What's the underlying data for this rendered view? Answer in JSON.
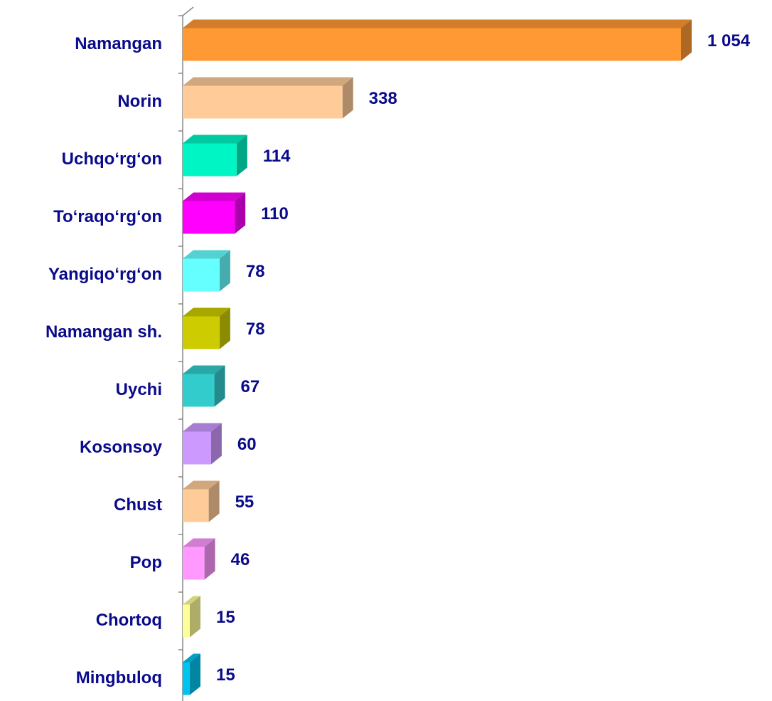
{
  "chart_data": {
    "type": "bar",
    "orientation": "horizontal",
    "3d": true,
    "categories": [
      "Namangan",
      "Norin",
      "Uchqo‘rg‘on",
      "To‘raqo‘rg‘on",
      "Yangiqo‘rg‘on",
      "Namangan sh.",
      "Uychi",
      "Kosonsoy",
      "Chust",
      "Pop",
      "Chortoq",
      "Mingbuloq"
    ],
    "values": [
      1054,
      338,
      114,
      110,
      78,
      78,
      67,
      60,
      55,
      46,
      15,
      15
    ],
    "value_labels": [
      "1 054",
      "338",
      "114",
      "110",
      "78",
      "78",
      "67",
      "60",
      "55",
      "46",
      "15",
      "15"
    ],
    "colors": [
      "#ff9933",
      "#ffcc99",
      "#00f5c4",
      "#ff00ff",
      "#66ffff",
      "#cccc00",
      "#33cccc",
      "#cc99ff",
      "#ffcc99",
      "#ff99ff",
      "#ffff99",
      "#00c4f0"
    ]
  }
}
